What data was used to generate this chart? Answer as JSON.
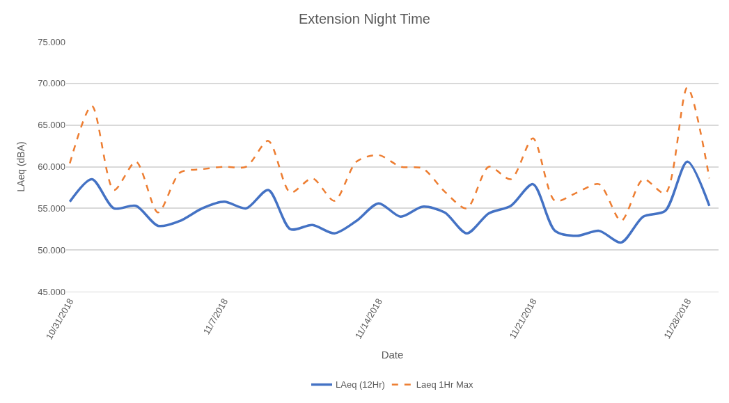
{
  "chart_data": {
    "type": "line",
    "title": "Extension Night Time",
    "xlabel": "Date",
    "ylabel": "LAeq (dBA)",
    "x": [
      "2018-10-31",
      "2018-11-01",
      "2018-11-02",
      "2018-11-03",
      "2018-11-04",
      "2018-11-05",
      "2018-11-06",
      "2018-11-07",
      "2018-11-08",
      "2018-11-09",
      "2018-11-10",
      "2018-11-11",
      "2018-11-12",
      "2018-11-13",
      "2018-11-14",
      "2018-11-15",
      "2018-11-16",
      "2018-11-17",
      "2018-11-18",
      "2018-11-19",
      "2018-11-20",
      "2018-11-21",
      "2018-11-22",
      "2018-11-23",
      "2018-11-24",
      "2018-11-25",
      "2018-11-26",
      "2018-11-27",
      "2018-11-28",
      "2018-11-29"
    ],
    "series": [
      {
        "name": "LAeq (12Hr)",
        "color": "#4472c4",
        "line_style": "solid",
        "values": [
          55.8,
          58.5,
          55.0,
          55.3,
          52.9,
          53.5,
          55.0,
          55.8,
          55.0,
          57.2,
          52.5,
          53.0,
          52.0,
          53.5,
          55.6,
          54.0,
          55.2,
          54.5,
          52.0,
          54.4,
          55.3,
          57.9,
          52.3,
          51.7,
          52.3,
          50.9,
          54.0,
          54.7,
          60.6,
          55.3
        ]
      },
      {
        "name": "Laeq 1Hr Max",
        "color": "#ed7d31",
        "line_style": "dashed",
        "values": [
          60.4,
          67.3,
          57.2,
          60.6,
          54.5,
          59.3,
          59.7,
          60.0,
          60.0,
          63.1,
          56.9,
          58.6,
          55.9,
          60.6,
          61.4,
          60.0,
          59.8,
          57.0,
          55.0,
          60.0,
          58.5,
          63.4,
          55.9,
          56.9,
          57.9,
          53.5,
          58.5,
          56.8,
          69.5,
          58.6
        ]
      }
    ],
    "xlim": [
      "2018-10-30T20:00",
      "2018-11-29T10:00"
    ],
    "xticks": [
      {
        "value": "2018-10-31",
        "label": "10/31/2018"
      },
      {
        "value": "2018-11-07",
        "label": "11/7/2018"
      },
      {
        "value": "2018-11-14",
        "label": "11/14/2018"
      },
      {
        "value": "2018-11-21",
        "label": "11/21/2018"
      },
      {
        "value": "2018-11-28",
        "label": "11/28/2018"
      }
    ],
    "ylim": [
      45,
      75
    ],
    "yticks": [
      {
        "value": 45,
        "label": "45.000"
      },
      {
        "value": 50,
        "label": "50.000"
      },
      {
        "value": 55,
        "label": "55.000"
      },
      {
        "value": 60,
        "label": "60.000"
      },
      {
        "value": 65,
        "label": "65.000"
      },
      {
        "value": 70,
        "label": "70.000"
      },
      {
        "value": 75,
        "label": "75.000"
      }
    ],
    "grid": "y",
    "legend": "bottom",
    "marker": "none"
  }
}
